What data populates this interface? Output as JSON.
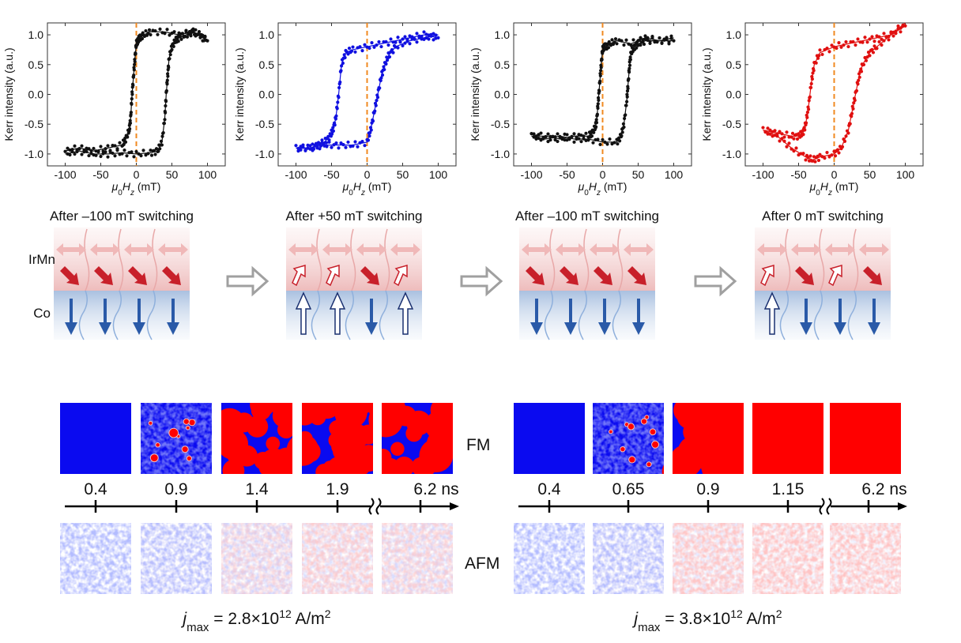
{
  "chart_data": [
    {
      "type": "line",
      "ylabel": "Kerr intensity (a.u.)",
      "xlabel_parts": [
        "μ",
        "0",
        "H",
        "z",
        " (mT)"
      ],
      "xlim": [
        -125,
        125
      ],
      "ylim": [
        -1.2,
        1.2
      ],
      "xticks": [
        "-100",
        "-50",
        "0",
        "50",
        "100"
      ],
      "yticks": [
        "-1.0",
        "-0.5",
        "0.0",
        "0.5",
        "1.0"
      ],
      "color": "#111111",
      "marker_line": 0,
      "series": [
        {
          "x": [
            100,
            80,
            60,
            40,
            20,
            10,
            5,
            2,
            0,
            -2,
            -4,
            -6,
            -8,
            -10,
            -15,
            -20,
            -40,
            -60,
            -80,
            -100
          ],
          "y": [
            0.9,
            1.05,
            1.0,
            1.05,
            1.05,
            1.0,
            0.95,
            0.9,
            0.85,
            0.6,
            0.3,
            0.0,
            -0.4,
            -0.6,
            -0.75,
            -0.85,
            -0.9,
            -0.95,
            -0.9,
            -0.95
          ]
        },
        {
          "x": [
            -100,
            -80,
            -60,
            -40,
            -20,
            0,
            20,
            30,
            36,
            40,
            42,
            44,
            46,
            50,
            55,
            60,
            70,
            80,
            90,
            100
          ],
          "y": [
            -1.0,
            -0.95,
            -1.0,
            -1.0,
            -0.98,
            -1.0,
            -0.98,
            -0.95,
            -0.8,
            -0.4,
            0.0,
            0.3,
            0.6,
            0.8,
            0.9,
            0.95,
            1.0,
            1.05,
            1.0,
            0.9
          ]
        }
      ]
    },
    {
      "type": "line",
      "ylabel": "Kerr intensity (a.u.)",
      "xlabel_parts": [
        "μ",
        "0",
        "H",
        "z",
        " (mT)"
      ],
      "xlim": [
        -125,
        125
      ],
      "ylim": [
        -1.2,
        1.2
      ],
      "xticks": [
        "-100",
        "-50",
        "0",
        "50",
        "100"
      ],
      "yticks": [
        "-1.0",
        "-0.5",
        "0.0",
        "0.5",
        "1.0"
      ],
      "color": "#1010e0",
      "marker_line": 0,
      "series": [
        {
          "x": [
            100,
            80,
            60,
            40,
            20,
            0,
            -20,
            -30,
            -36,
            -40,
            -44,
            -48,
            -52,
            -60,
            -70,
            -80,
            -100
          ],
          "y": [
            0.95,
            1.0,
            0.95,
            0.9,
            0.85,
            0.8,
            0.75,
            0.7,
            0.5,
            0.0,
            -0.4,
            -0.6,
            -0.7,
            -0.8,
            -0.85,
            -0.9,
            -0.9
          ]
        },
        {
          "x": [
            -100,
            -80,
            -60,
            -40,
            -20,
            0,
            5,
            10,
            15,
            20,
            25,
            30,
            40,
            60,
            80,
            100
          ],
          "y": [
            -0.9,
            -0.9,
            -0.85,
            -0.85,
            -0.85,
            -0.8,
            -0.6,
            -0.3,
            0.0,
            0.3,
            0.5,
            0.65,
            0.8,
            0.9,
            0.95,
            1.0
          ]
        }
      ]
    },
    {
      "type": "line",
      "ylabel": "Kerr intensity (a.u.)",
      "xlabel_parts": [
        "μ",
        "0",
        "H",
        "z",
        " (mT)"
      ],
      "xlim": [
        -125,
        125
      ],
      "ylim": [
        -1.2,
        1.2
      ],
      "xticks": [
        "-100",
        "-50",
        "0",
        "50",
        "100"
      ],
      "yticks": [
        "-1.0",
        "-0.5",
        "0.0",
        "0.5",
        "1.0"
      ],
      "color": "#111111",
      "marker_line": 0,
      "series": [
        {
          "x": [
            100,
            80,
            60,
            40,
            20,
            10,
            5,
            2,
            0,
            -2,
            -4,
            -6,
            -8,
            -10,
            -15,
            -20,
            -40,
            -60,
            -80,
            -100
          ],
          "y": [
            0.9,
            0.9,
            0.95,
            0.85,
            0.9,
            0.85,
            0.8,
            0.8,
            0.75,
            0.5,
            0.2,
            -0.1,
            -0.4,
            -0.55,
            -0.65,
            -0.7,
            -0.7,
            -0.75,
            -0.7,
            -0.7
          ]
        },
        {
          "x": [
            -100,
            -80,
            -60,
            -40,
            -20,
            0,
            20,
            26,
            30,
            34,
            36,
            38,
            40,
            45,
            50,
            60,
            80,
            100
          ],
          "y": [
            -0.7,
            -0.75,
            -0.7,
            -0.75,
            -0.75,
            -0.8,
            -0.8,
            -0.7,
            -0.5,
            -0.1,
            0.2,
            0.5,
            0.7,
            0.8,
            0.85,
            0.9,
            0.9,
            0.95
          ]
        }
      ]
    },
    {
      "type": "line",
      "ylabel": "Kerr intensity (a.u.)",
      "xlabel_parts": [
        "μ",
        "0",
        "H",
        "z",
        " (mT)"
      ],
      "xlim": [
        -125,
        125
      ],
      "ylim": [
        -1.2,
        1.2
      ],
      "xticks": [
        "-100",
        "-50",
        "0",
        "50",
        "100"
      ],
      "yticks": [
        "-1.0",
        "-0.5",
        "0.0",
        "0.5",
        "1.0"
      ],
      "color": "#e01010",
      "marker_line": 0,
      "series": [
        {
          "x": [
            100,
            80,
            60,
            40,
            20,
            0,
            -20,
            -28,
            -32,
            -36,
            -40,
            -44,
            -50,
            -60,
            -80,
            -100
          ],
          "y": [
            1.15,
            1.0,
            0.95,
            0.9,
            0.85,
            0.8,
            0.7,
            0.5,
            0.2,
            -0.2,
            -0.5,
            -0.65,
            -0.7,
            -0.7,
            -0.65,
            -0.6
          ]
        },
        {
          "x": [
            -100,
            -80,
            -60,
            -40,
            -30,
            -20,
            0,
            10,
            20,
            25,
            30,
            35,
            40,
            50,
            60,
            80,
            100
          ],
          "y": [
            -0.6,
            -0.7,
            -0.9,
            -1.05,
            -1.1,
            -1.05,
            -1.0,
            -0.9,
            -0.6,
            -0.3,
            0.0,
            0.3,
            0.5,
            0.7,
            0.8,
            1.0,
            1.2
          ]
        }
      ]
    }
  ],
  "reference_line_color": "#f08a20",
  "schematic": {
    "layer_afm": "IrMn",
    "layer_fm": "Co",
    "panels": [
      {
        "title": "After –100 mT switching",
        "afm": [
          "down",
          "down",
          "down",
          "down"
        ],
        "fm": [
          "down",
          "down",
          "down",
          "down"
        ]
      },
      {
        "title": "After +50 mT switching",
        "afm": [
          "up",
          "up",
          "down",
          "up"
        ],
        "fm": [
          "up",
          "up",
          "down",
          "up"
        ]
      },
      {
        "title": "After –100 mT switching",
        "afm": [
          "down",
          "down",
          "down",
          "down"
        ],
        "fm": [
          "down",
          "down",
          "down",
          "down"
        ]
      },
      {
        "title": "After 0 mT switching",
        "afm": [
          "up",
          "down",
          "up",
          "down"
        ],
        "fm": [
          "up",
          "down",
          "down",
          "down"
        ]
      }
    ]
  },
  "simulation": {
    "fm_label": "FM",
    "afm_label": "AFM",
    "colors": {
      "up": "#ff0000",
      "down": "#0a0af0"
    },
    "sets": [
      {
        "times": [
          "0.4",
          "0.9",
          "1.4",
          "1.9",
          "6.2 ns"
        ],
        "red_fraction": [
          0.0,
          0.05,
          0.5,
          0.7,
          0.6
        ],
        "jmax": {
          "j": "j",
          "sub": "max",
          "eq": " = 2.8×10",
          "exp": "12",
          "unit": " A/m",
          "unit_exp": "2"
        }
      },
      {
        "times": [
          "0.4",
          "0.65",
          "0.9",
          "1.15",
          "6.2 ns"
        ],
        "red_fraction": [
          0.0,
          0.05,
          0.85,
          1.0,
          1.0
        ],
        "jmax": {
          "j": "j",
          "sub": "max",
          "eq": " = 3.8×10",
          "exp": "12",
          "unit": " A/m",
          "unit_exp": "2"
        }
      }
    ]
  }
}
